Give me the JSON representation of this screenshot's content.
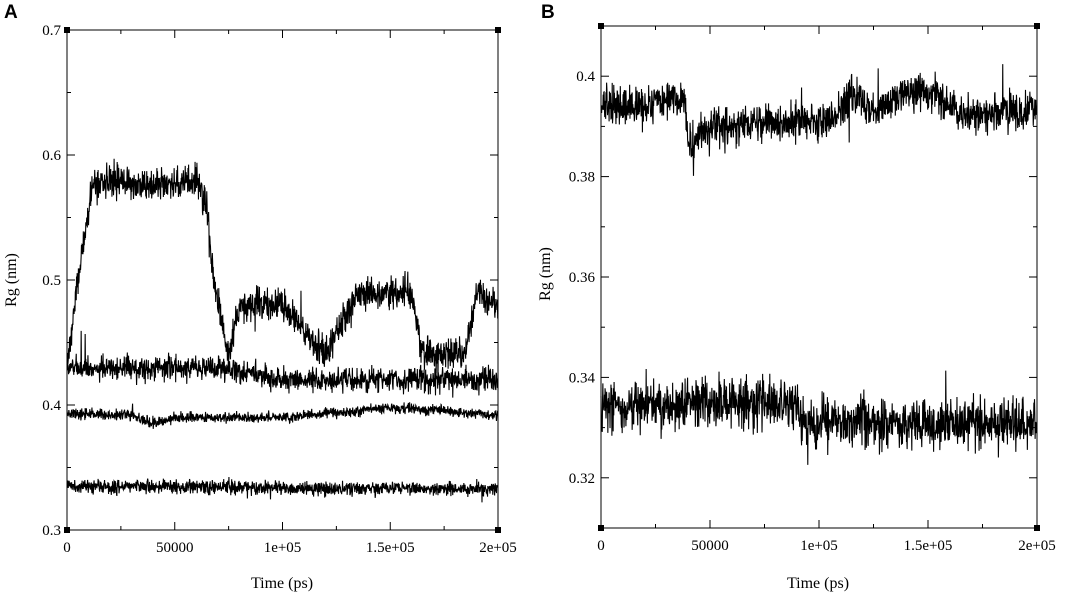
{
  "chart_data": [
    {
      "panel": "A",
      "type": "line",
      "xlabel": "Time (ps)",
      "ylabel": "Rg (nm)",
      "xlim": [
        0,
        200000
      ],
      "ylim": [
        0.3,
        0.7
      ],
      "x_ticks": [
        "0",
        "50000",
        "1e+05",
        "1.5e+05",
        "2e+05"
      ],
      "x_tick_values": [
        0,
        50000,
        100000,
        150000,
        200000
      ],
      "y_ticks": [
        "0.3",
        "0.4",
        "0.5",
        "0.6",
        "0.7"
      ],
      "y_tick_values": [
        0.3,
        0.4,
        0.5,
        0.6,
        0.7
      ],
      "grid": false,
      "legend": "none",
      "series_color": "#000000",
      "series": [
        {
          "x": [
            0,
            10000,
            25000,
            50000,
            65000,
            70000,
            100000,
            150000,
            200000
          ],
          "values": [
            0.43,
            0.43,
            0.43,
            0.43,
            0.43,
            0.43,
            0.42,
            0.42,
            0.42
          ],
          "noise": 0.009
        },
        {
          "x": [
            0,
            30000,
            40000,
            50000,
            70000,
            100000,
            150000,
            200000
          ],
          "values": [
            0.393,
            0.392,
            0.385,
            0.39,
            0.39,
            0.39,
            0.398,
            0.392
          ],
          "noise": 0.004
        },
        {
          "x": [
            0,
            50000,
            100000,
            150000,
            200000
          ],
          "values": [
            0.335,
            0.335,
            0.333,
            0.333,
            0.333
          ],
          "noise": 0.005
        },
        {
          "x": [
            0,
            5000,
            10000,
            12000,
            20000,
            40000,
            60000,
            65000,
            68000,
            75000,
            80000,
            100000,
            120000,
            135000,
            160000,
            165000,
            185000,
            190000,
            200000
          ],
          "values": [
            0.43,
            0.5,
            0.555,
            0.575,
            0.58,
            0.575,
            0.58,
            0.56,
            0.5,
            0.44,
            0.48,
            0.48,
            0.44,
            0.49,
            0.49,
            0.44,
            0.44,
            0.49,
            0.48
          ],
          "noise": 0.012
        }
      ]
    },
    {
      "panel": "B",
      "type": "line",
      "xlabel": "Time (ps)",
      "ylabel": "Rg (nm)",
      "xlim": [
        0,
        200000
      ],
      "ylim": [
        0.31,
        0.41
      ],
      "x_ticks": [
        "0",
        "50000",
        "1e+05",
        "1.5e+05",
        "2e+05"
      ],
      "x_tick_values": [
        0,
        50000,
        100000,
        150000,
        200000
      ],
      "y_ticks": [
        "0.32",
        "0.34",
        "0.36",
        "0.38",
        "0.4"
      ],
      "y_tick_values": [
        0.32,
        0.34,
        0.36,
        0.38,
        0.4
      ],
      "grid": false,
      "legend": "none",
      "series_color": "#000000",
      "series": [
        {
          "x": [
            0,
            20000,
            38000,
            40000,
            45000,
            60000,
            80000,
            100000,
            110000,
            115000,
            125000,
            140000,
            155000,
            165000,
            185000,
            200000
          ],
          "values": [
            0.394,
            0.394,
            0.396,
            0.386,
            0.389,
            0.39,
            0.391,
            0.391,
            0.393,
            0.397,
            0.393,
            0.397,
            0.396,
            0.392,
            0.393,
            0.393
          ],
          "noise": 0.0035
        },
        {
          "x": [
            0,
            50000,
            90000,
            92000,
            140000,
            200000
          ],
          "values": [
            0.334,
            0.335,
            0.335,
            0.331,
            0.331,
            0.331
          ],
          "noise": 0.0045
        }
      ]
    }
  ],
  "panels": {
    "a": {
      "letter": "A",
      "xlabel": "Time (ps)",
      "ylabel": "Rg (nm)"
    },
    "b": {
      "letter": "B",
      "xlabel": "Time (ps)",
      "ylabel": "Rg (nm)"
    }
  }
}
